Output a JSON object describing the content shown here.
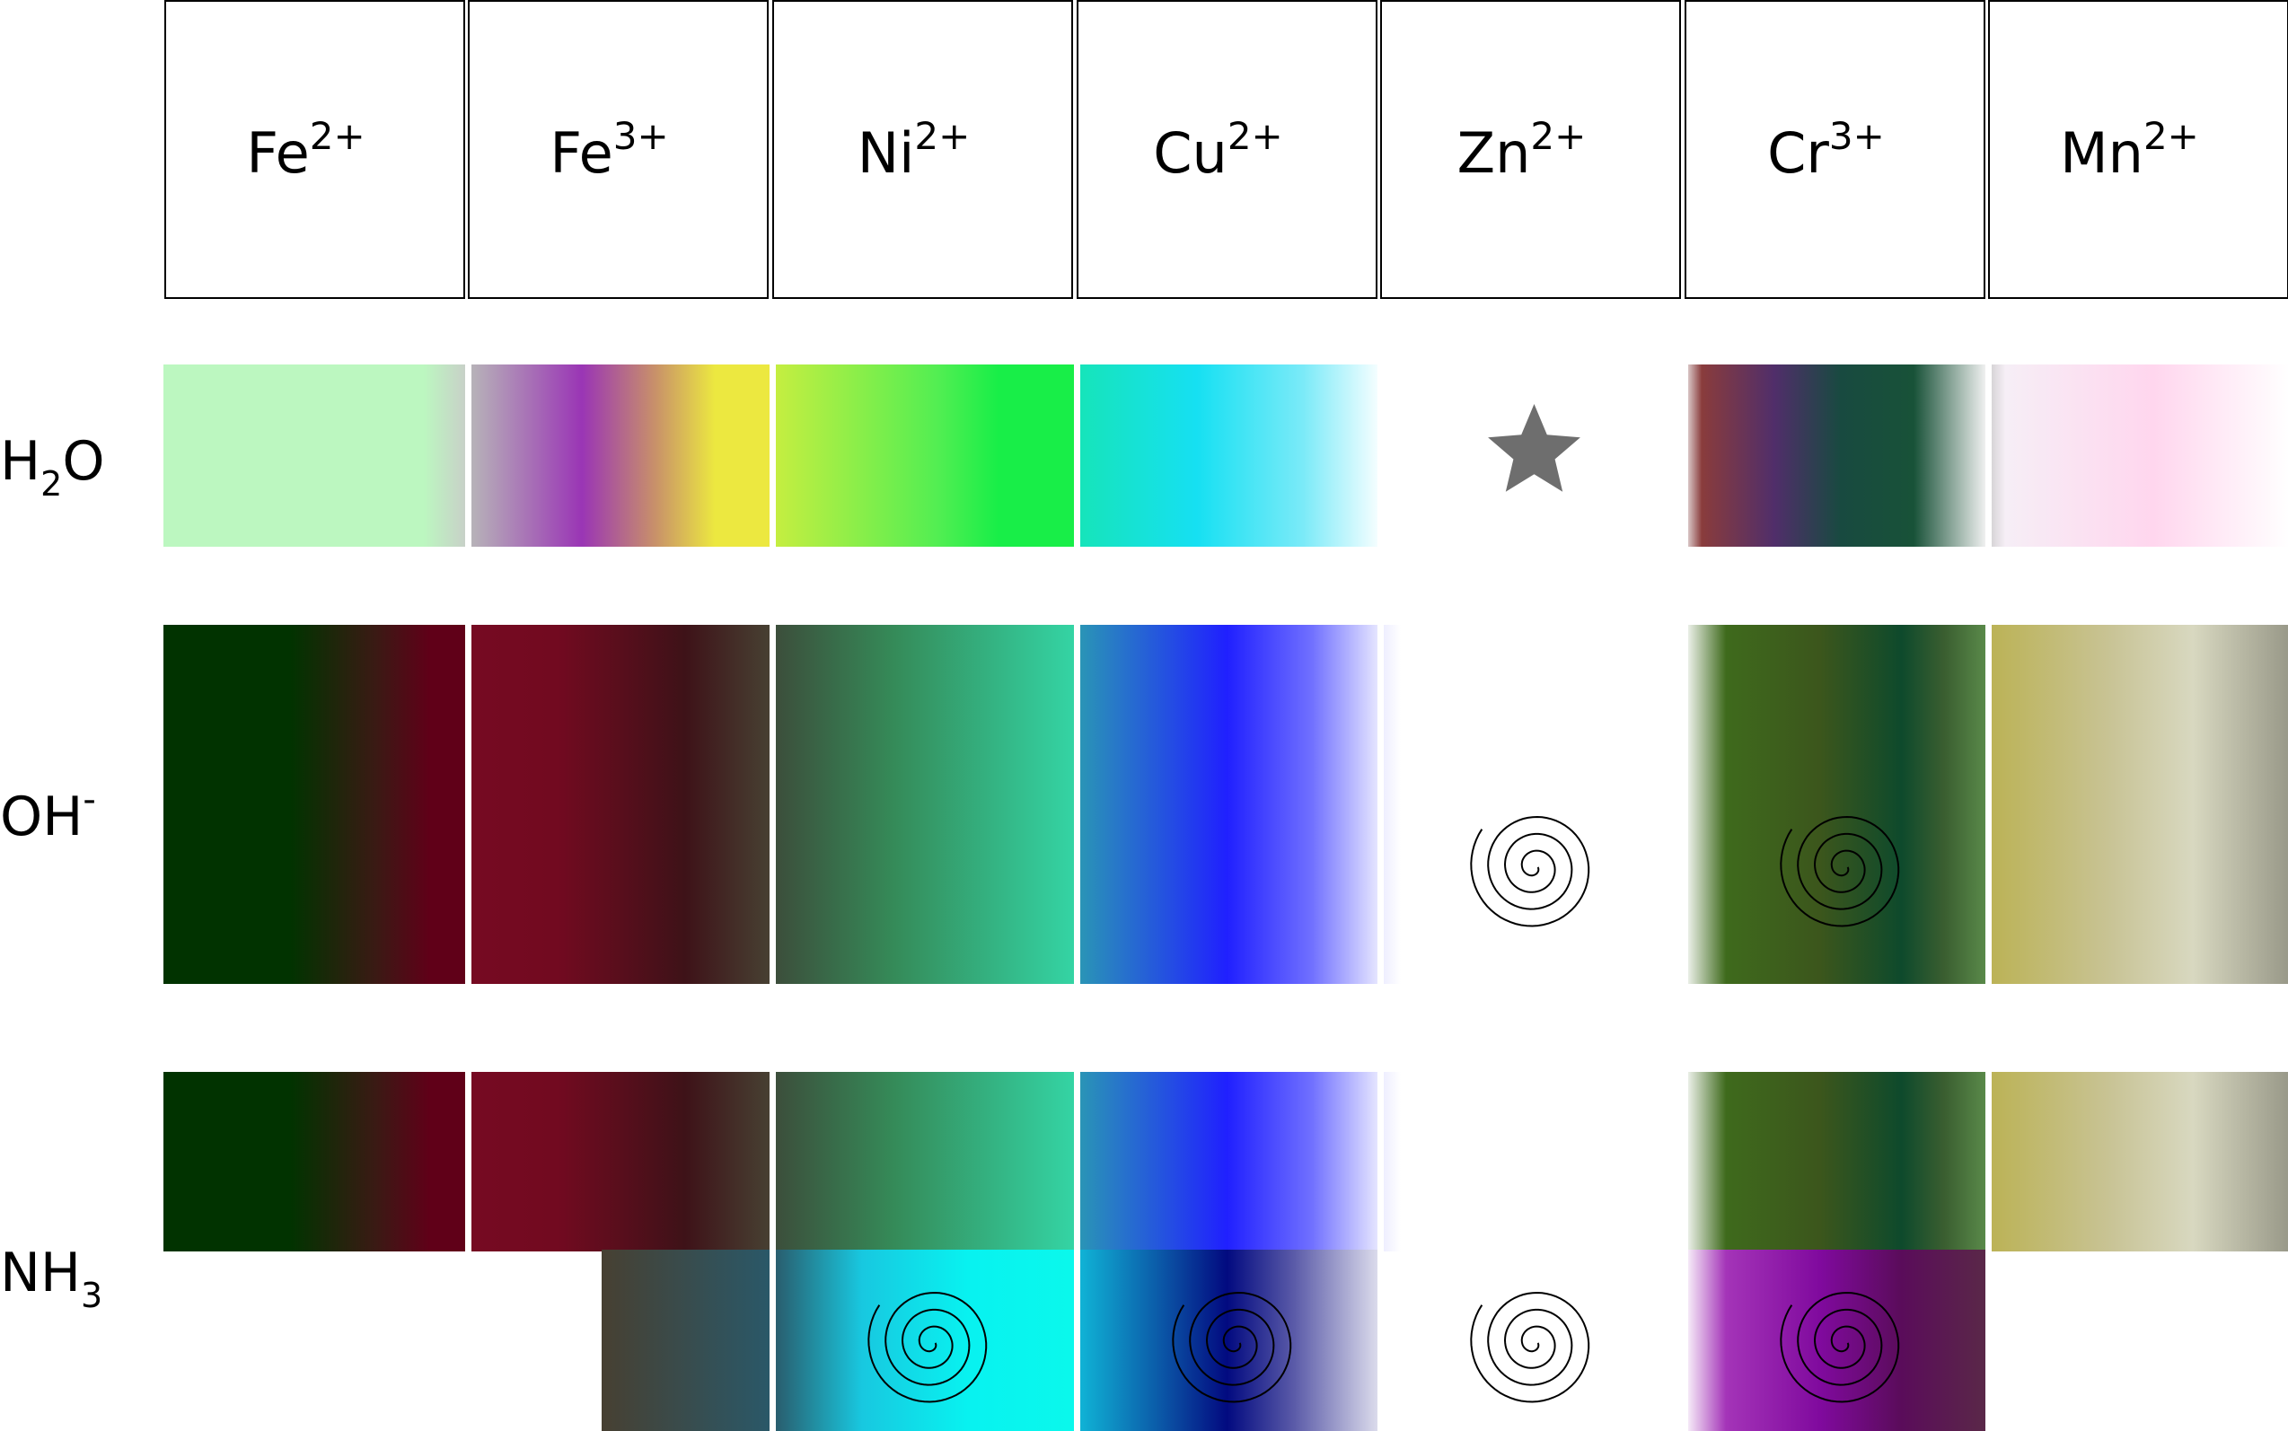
{
  "ions": [
    {
      "base": "Fe",
      "charge": "2+"
    },
    {
      "base": "Fe",
      "charge": "3+"
    },
    {
      "base": "Ni",
      "charge": "2+"
    },
    {
      "base": "Cu",
      "charge": "2+"
    },
    {
      "base": "Zn",
      "charge": "2+"
    },
    {
      "base": "Cr",
      "charge": "3+"
    },
    {
      "base": "Mn",
      "charge": "2+"
    }
  ],
  "reagents": [
    {
      "base": "H",
      "sub": "2",
      "tail": "O",
      "sup": ""
    },
    {
      "base": "OH",
      "sub": "",
      "tail": "",
      "sup": "-"
    },
    {
      "base": "NH",
      "sub": "3",
      "tail": "",
      "sup": ""
    }
  ],
  "symbols": {
    "star": "star-icon",
    "spiral": "spiral-icon"
  },
  "cells": {
    "h2o": [
      {
        "stops": [
          [
            "0",
            "#bcf7c0"
          ],
          [
            "0.86",
            "#bcf7c0"
          ],
          [
            "1",
            "#c8d0c8"
          ]
        ]
      },
      {
        "stops": [
          [
            "0",
            "#b8b8b8"
          ],
          [
            "0.38",
            "#9a35b5"
          ],
          [
            "0.62",
            "#c8906a"
          ],
          [
            "0.82",
            "#ece840"
          ],
          [
            "1",
            "#ece840"
          ]
        ]
      },
      {
        "stops": [
          [
            "0",
            "#c8ee40"
          ],
          [
            "0.55",
            "#52ee52"
          ],
          [
            "0.75",
            "#18ee48"
          ],
          [
            "1",
            "#18ee48"
          ]
        ]
      },
      {
        "stops": [
          [
            "0",
            "#16e4b8"
          ],
          [
            "0.4",
            "#16e0f2"
          ],
          [
            "0.75",
            "#7aeaf8"
          ],
          [
            "1",
            "#f5feff"
          ]
        ]
      },
      {
        "empty": true,
        "symbol": "star"
      },
      {
        "stops": [
          [
            "0",
            "#f2f2f2"
          ],
          [
            "0.06",
            "#8a3c3c"
          ],
          [
            "0.3",
            "#502e6a"
          ],
          [
            "0.52",
            "#184a40"
          ],
          [
            "0.76",
            "#185238"
          ],
          [
            "1",
            "#f2f2f2"
          ]
        ]
      },
      {
        "stops": [
          [
            "0",
            "#cccccc"
          ],
          [
            "0.06",
            "#f6eef6"
          ],
          [
            "0.55",
            "#ffd6ee"
          ],
          [
            "1",
            "#ffffff"
          ]
        ]
      }
    ],
    "oh": [
      {
        "stops": [
          [
            "0",
            "#013300"
          ],
          [
            "0.42",
            "#013300"
          ],
          [
            "0.7",
            "#3a1a14"
          ],
          [
            "0.88",
            "#600018"
          ],
          [
            "1",
            "#600018"
          ]
        ]
      },
      {
        "stops": [
          [
            "0",
            "#760a22"
          ],
          [
            "0.3",
            "#720a20"
          ],
          [
            "0.72",
            "#3e1218"
          ],
          [
            "1",
            "#474032"
          ]
        ]
      },
      {
        "stops": [
          [
            "0",
            "#3c4c3a"
          ],
          [
            "0.4",
            "#358a58"
          ],
          [
            "1",
            "#34d4a4"
          ]
        ]
      },
      {
        "stops": [
          [
            "0",
            "#2a98b4"
          ],
          [
            "0.5",
            "#2020ff"
          ],
          [
            "0.78",
            "#7070ff"
          ],
          [
            "1",
            "#e6e6ff"
          ]
        ]
      },
      {
        "empty": true,
        "symbol": "spiral",
        "edge": true
      },
      {
        "stops": [
          [
            "0",
            "#ffffff"
          ],
          [
            "0.14",
            "#3e6a1c"
          ],
          [
            "0.45",
            "#3c561c"
          ],
          [
            "0.72",
            "#0e4a2c"
          ],
          [
            "0.86",
            "#3a5e30"
          ],
          [
            "1",
            "#5a8a4a"
          ]
        ]
      },
      {
        "stops": [
          [
            "0",
            "#bbb254"
          ],
          [
            "0.4",
            "#c8c394"
          ],
          [
            "0.68",
            "#d8d8c0"
          ],
          [
            "1",
            "#989888"
          ]
        ]
      }
    ],
    "nh3": [
      {
        "stops": [
          [
            "0",
            "#013300"
          ],
          [
            "0.42",
            "#013300"
          ],
          [
            "0.7",
            "#3a1a14"
          ],
          [
            "0.88",
            "#600018"
          ],
          [
            "1",
            "#600018"
          ]
        ]
      },
      {
        "stops": [
          [
            "0",
            "#760a22"
          ],
          [
            "0.3",
            "#720a20"
          ],
          [
            "0.72",
            "#3e1218"
          ],
          [
            "1",
            "#474032"
          ]
        ]
      },
      {
        "stops": [
          [
            "0",
            "#3c4c3a"
          ],
          [
            "0.4",
            "#358a58"
          ],
          [
            "1",
            "#34d4a4"
          ]
        ]
      },
      {
        "stops": [
          [
            "0",
            "#2a98b4"
          ],
          [
            "0.5",
            "#2020ff"
          ],
          [
            "0.78",
            "#7070ff"
          ],
          [
            "1",
            "#e6e6ff"
          ]
        ]
      },
      {
        "empty": true,
        "symbol": "spiral",
        "edge": true
      },
      {
        "stops": [
          [
            "0",
            "#ffffff"
          ],
          [
            "0.14",
            "#3e6a1c"
          ],
          [
            "0.45",
            "#3c561c"
          ],
          [
            "0.72",
            "#0e4a2c"
          ],
          [
            "0.86",
            "#3a5e30"
          ],
          [
            "1",
            "#5a8a4a"
          ]
        ]
      },
      {
        "stops": [
          [
            "0",
            "#bbb254"
          ],
          [
            "0.4",
            "#c8c394"
          ],
          [
            "0.68",
            "#d8d8c0"
          ],
          [
            "1",
            "#989888"
          ]
        ]
      }
    ],
    "nh3_excess": [
      {
        "none": true
      },
      {
        "fadeIn": true,
        "stops": [
          [
            "0",
            "#474032"
          ],
          [
            "1",
            "#2a5868"
          ]
        ]
      },
      {
        "stops": [
          [
            "0",
            "#2a5868"
          ],
          [
            "0.3",
            "#18c8e0"
          ],
          [
            "0.65",
            "#08f2f0"
          ],
          [
            "1",
            "#0af8ec"
          ]
        ],
        "symbol": "spiral"
      },
      {
        "stops": [
          [
            "0",
            "#10b8d8"
          ],
          [
            "0.32",
            "#0a4aa0"
          ],
          [
            "0.5",
            "#020a80"
          ],
          [
            "0.72",
            "#5a5aa8"
          ],
          [
            "1",
            "#dcdcec"
          ]
        ],
        "symbol": "spiral"
      },
      {
        "none": true
      },
      {
        "stops": [
          [
            "0",
            "#ffffff"
          ],
          [
            "0.14",
            "#a434b8"
          ],
          [
            "0.45",
            "#800a9e"
          ],
          [
            "0.72",
            "#5a0c5a"
          ],
          [
            "1",
            "#5a2848"
          ]
        ],
        "symbol": "spiral"
      },
      {
        "none": true
      }
    ]
  }
}
